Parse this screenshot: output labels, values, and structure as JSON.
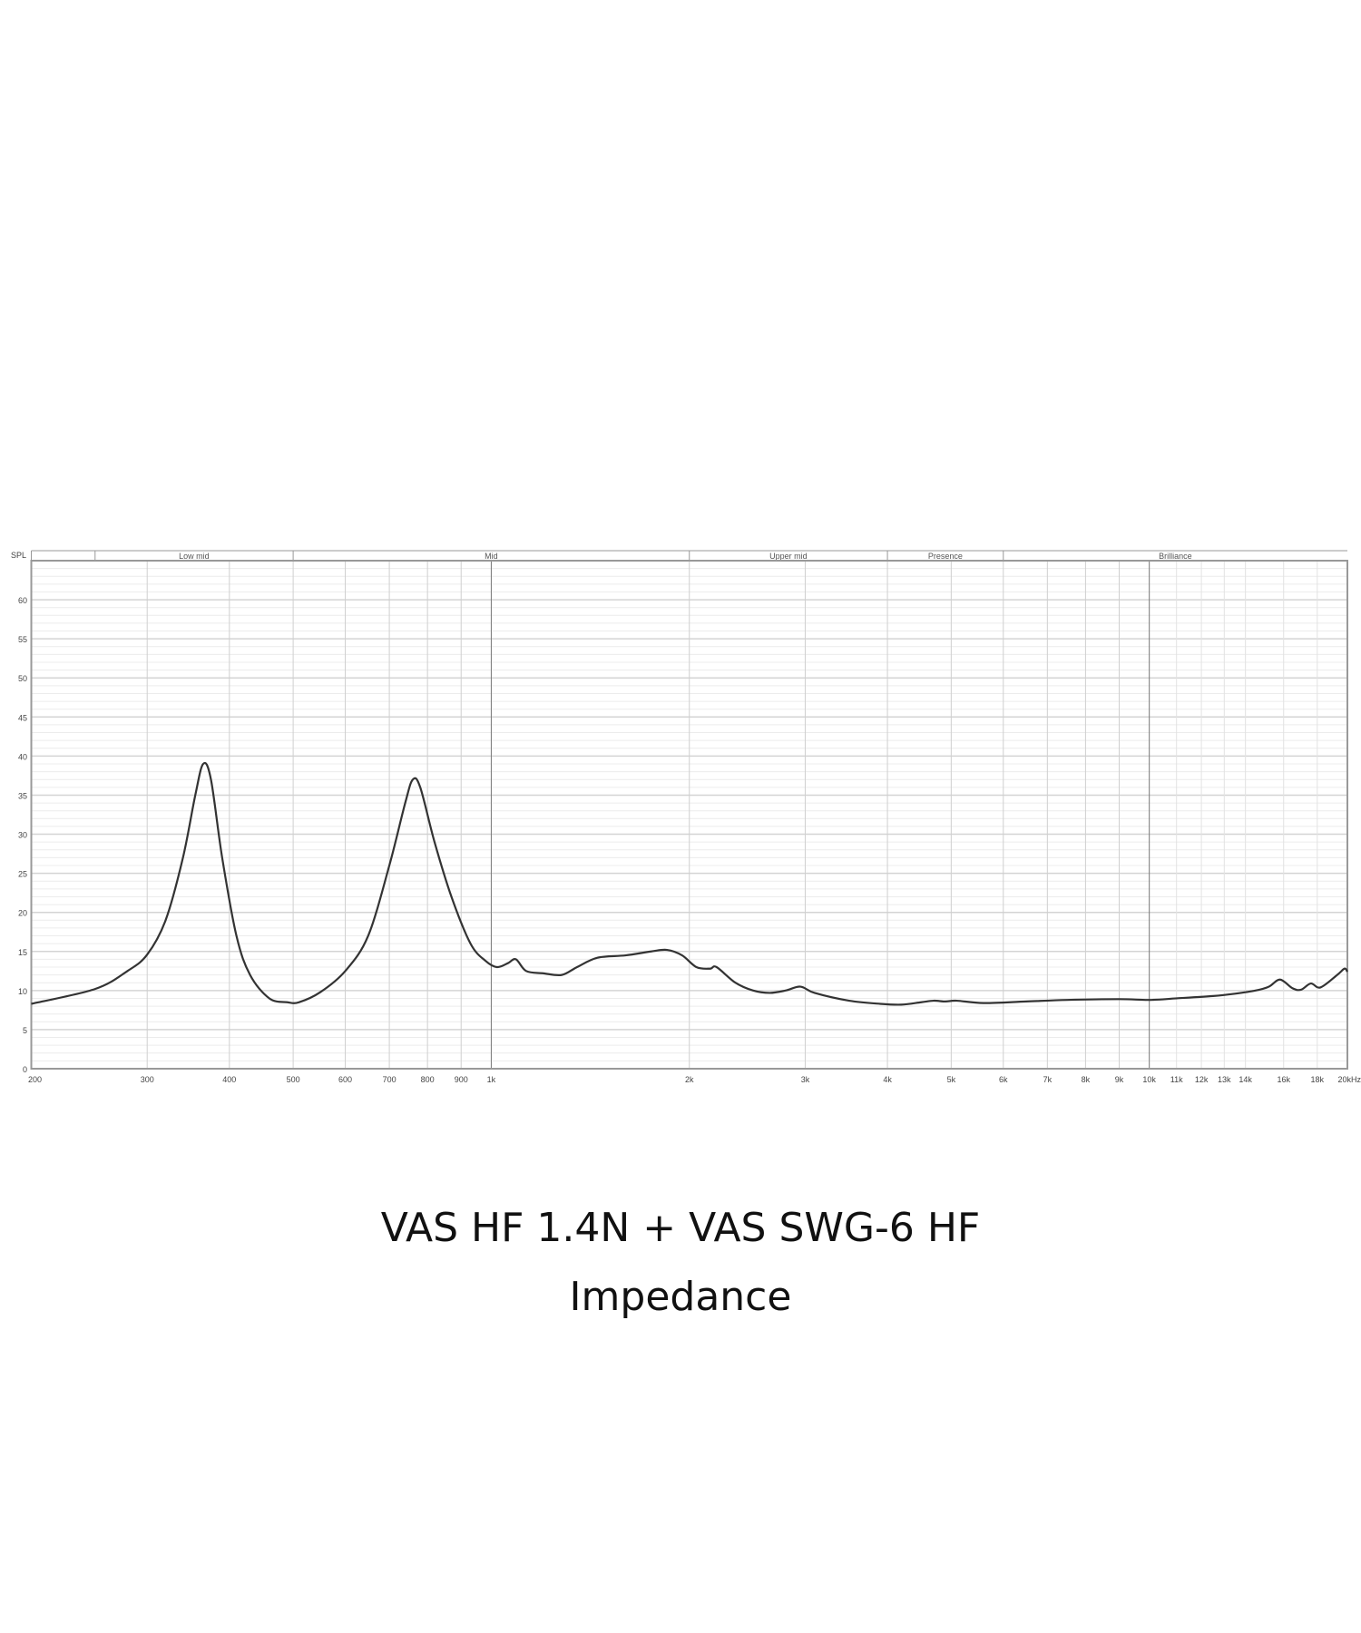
{
  "chart_data": {
    "type": "line",
    "title": "VAS HF 1.4N + VAS SWG-6 HF",
    "subtitle": "Impedance",
    "ylabel": "SPL",
    "xscale": "log",
    "xlim": [
      200,
      20000
    ],
    "ylim": [
      0,
      65
    ],
    "grid": true,
    "yticks": [
      0,
      5,
      10,
      15,
      20,
      25,
      30,
      35,
      40,
      45,
      50,
      55,
      60
    ],
    "xticks": [
      {
        "f": 200,
        "label": "200"
      },
      {
        "f": 300,
        "label": "300"
      },
      {
        "f": 400,
        "label": "400"
      },
      {
        "f": 500,
        "label": "500"
      },
      {
        "f": 600,
        "label": "600"
      },
      {
        "f": 700,
        "label": "700"
      },
      {
        "f": 800,
        "label": "800"
      },
      {
        "f": 900,
        "label": "900"
      },
      {
        "f": 1000,
        "label": "1k"
      },
      {
        "f": 2000,
        "label": "2k"
      },
      {
        "f": 3000,
        "label": "3k"
      },
      {
        "f": 4000,
        "label": "4k"
      },
      {
        "f": 5000,
        "label": "5k"
      },
      {
        "f": 6000,
        "label": "6k"
      },
      {
        "f": 7000,
        "label": "7k"
      },
      {
        "f": 8000,
        "label": "8k"
      },
      {
        "f": 9000,
        "label": "9k"
      },
      {
        "f": 10000,
        "label": "10k"
      },
      {
        "f": 11000,
        "label": "11k"
      },
      {
        "f": 12000,
        "label": "12k"
      },
      {
        "f": 13000,
        "label": "13k"
      },
      {
        "f": 14000,
        "label": "14k"
      },
      {
        "f": 16000,
        "label": "16k"
      },
      {
        "f": 18000,
        "label": "18k"
      },
      {
        "f": 20000,
        "label": "20kHz"
      }
    ],
    "bands": [
      {
        "from": 200,
        "to": 250,
        "label": ""
      },
      {
        "from": 250,
        "to": 500,
        "label": "Low mid"
      },
      {
        "from": 500,
        "to": 2000,
        "label": "Mid"
      },
      {
        "from": 2000,
        "to": 4000,
        "label": "Upper mid"
      },
      {
        "from": 4000,
        "to": 6000,
        "label": "Presence"
      },
      {
        "from": 6000,
        "to": 20000,
        "label": "Brilliance"
      }
    ],
    "line_color": "#333333",
    "series": [
      {
        "x": [
          200,
          250,
          280,
          300,
          320,
          340,
          355,
          365,
          375,
          390,
          410,
          430,
          460,
          490,
          510,
          550,
          600,
          650,
          700,
          740,
          760,
          780,
          820,
          870,
          930,
          980,
          1020,
          1060,
          1090,
          1130,
          1200,
          1280,
          1350,
          1450,
          1600,
          1750,
          1850,
          1950,
          2050,
          2150,
          2200,
          2350,
          2500,
          2650,
          2800,
          2950,
          3100,
          3500,
          3900,
          4200,
          4500,
          4700,
          4900,
          5100,
          5600,
          6500,
          7500,
          9000,
          10000,
          11000,
          12500,
          13500,
          14500,
          15200,
          15800,
          16500,
          17000,
          17600,
          18200,
          19300,
          19800,
          20000
        ],
        "y": [
          8.3,
          10.2,
          12.5,
          14.6,
          19,
          27,
          35,
          39,
          37,
          27,
          17,
          12,
          9,
          8.5,
          8.5,
          9.8,
          12.5,
          17,
          26,
          34,
          37,
          36,
          29,
          22,
          16,
          13.8,
          13,
          13.5,
          14,
          12.5,
          12.2,
          12,
          13,
          14.2,
          14.5,
          15,
          15.2,
          14.5,
          13,
          12.8,
          13,
          11,
          10,
          9.7,
          10,
          10.5,
          9.7,
          8.7,
          8.3,
          8.2,
          8.5,
          8.7,
          8.6,
          8.7,
          8.4,
          8.6,
          8.8,
          8.9,
          8.8,
          9.0,
          9.3,
          9.6,
          10.0,
          10.5,
          11.4,
          10.3,
          10.1,
          10.9,
          10.4,
          12.0,
          12.8,
          12.4
        ]
      }
    ]
  }
}
